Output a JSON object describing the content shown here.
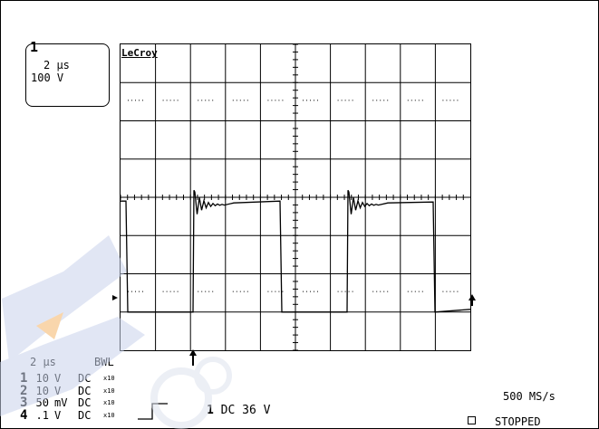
{
  "scope": {
    "brand": "LeCroy",
    "zoom_box": {
      "channel": "1",
      "timebase": "2 μs",
      "volts": "100 V"
    },
    "timebase": "2 μs",
    "bwl": "BWL",
    "channels": [
      {
        "num": "1",
        "volts": "10",
        "unit": "V",
        "coupling": "DC",
        "probe": "x10"
      },
      {
        "num": "2",
        "volts": "10",
        "unit": "V",
        "coupling": "DC",
        "probe": "x10"
      },
      {
        "num": "3",
        "volts": "50",
        "unit": "mV",
        "coupling": "DC",
        "probe": "x10"
      },
      {
        "num": "4",
        "volts": ".1",
        "unit": "V",
        "coupling": "DC",
        "probe": "x10"
      }
    ],
    "trigger": {
      "channel": "1",
      "coupling": "DC",
      "level": "36 V"
    },
    "sample_rate": "500 MS/s",
    "status": "STOPPED",
    "colors": {
      "trace": "#000000",
      "grid": "#000000",
      "watermark_blue": "#c9d3ec",
      "watermark_orange": "#f5b56a"
    }
  }
}
